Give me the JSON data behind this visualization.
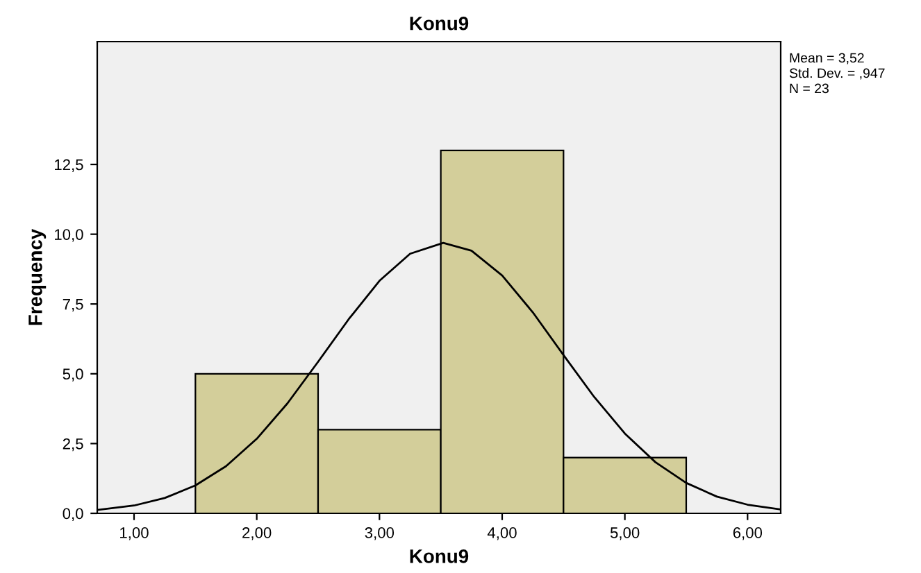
{
  "chart_data": {
    "type": "histogram",
    "title": "Konu9",
    "xlabel": "Konu9",
    "ylabel": "Frequency",
    "bins": [
      1.5,
      2.5,
      3.5,
      4.5,
      5.5
    ],
    "values": [
      5,
      3,
      13,
      2
    ],
    "color": "#d3ce9a",
    "series": [
      {
        "type": "line",
        "color": "#000000",
        "x": [
          0.7,
          1.0,
          1.25,
          1.5,
          1.75,
          2.0,
          2.25,
          2.5,
          2.75,
          3.0,
          3.25,
          3.52,
          3.75,
          4.0,
          4.25,
          4.5,
          4.75,
          5.0,
          5.25,
          5.5,
          5.75,
          6.0,
          6.27
        ],
        "values": [
          0.12,
          0.28,
          0.55,
          1.0,
          1.69,
          2.67,
          3.94,
          5.43,
          6.96,
          8.33,
          9.3,
          9.69,
          9.41,
          8.52,
          7.2,
          5.67,
          4.17,
          2.86,
          1.83,
          1.09,
          0.6,
          0.31,
          0.14
        ]
      }
    ],
    "xlim": [
      0.7,
      6.27
    ],
    "ylim": [
      0,
      16.9
    ],
    "xticks": [
      {
        "value": 1,
        "label": "1,00"
      },
      {
        "value": 2,
        "label": "2,00"
      },
      {
        "value": 3,
        "label": "3,00"
      },
      {
        "value": 4,
        "label": "4,00"
      },
      {
        "value": 5,
        "label": "5,00"
      },
      {
        "value": 6,
        "label": "6,00"
      }
    ],
    "yticks": [
      {
        "value": 0,
        "label": "0,0"
      },
      {
        "value": 2.5,
        "label": "2,5"
      },
      {
        "value": 5,
        "label": "5,0"
      },
      {
        "value": 7.5,
        "label": "7,5"
      },
      {
        "value": 10,
        "label": "10,0"
      },
      {
        "value": 12.5,
        "label": "12,5"
      }
    ],
    "annotations": [
      "Mean = 3,52",
      "Std. Dev. = ,947",
      "N = 23"
    ],
    "grid": false,
    "legend": false
  }
}
